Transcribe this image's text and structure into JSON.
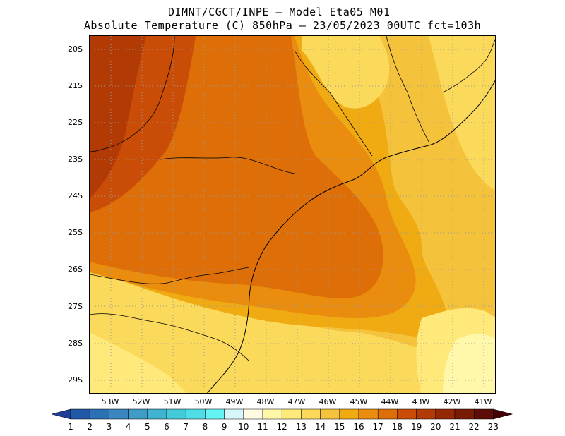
{
  "header": {
    "line1": "DIMNT/CGCT/INPE –  Model Eta05_M01_",
    "line2": "Absolute Temperature (C) 850hPa –  23/05/2023 00UTC fct=103h"
  },
  "map": {
    "lat_labels": [
      "20S",
      "21S",
      "22S",
      "23S",
      "24S",
      "25S",
      "26S",
      "27S",
      "28S",
      "29S"
    ],
    "lon_labels": [
      "53W",
      "52W",
      "51W",
      "50W",
      "49W",
      "48W",
      "47W",
      "46W",
      "45W",
      "44W",
      "43W",
      "42W",
      "41W"
    ],
    "grid": "dotted",
    "extent": {
      "lon": [
        -53.7,
        -40.6
      ],
      "lat": [
        -29.5,
        -19.8
      ]
    }
  },
  "colorbar": {
    "labels": [
      "1",
      "2",
      "3",
      "4",
      "5",
      "6",
      "7",
      "8",
      "9",
      "10",
      "11",
      "12",
      "13",
      "14",
      "15",
      "16",
      "17",
      "18",
      "19",
      "20",
      "21",
      "22",
      "23"
    ],
    "colors": [
      "#1e3f95",
      "#2158a8",
      "#2b71b4",
      "#3a86bf",
      "#3f9cc6",
      "#40b3d0",
      "#44cbd9",
      "#4fdde6",
      "#66f3f3",
      "#d6f6fa",
      "#fffbe3",
      "#fff7aa",
      "#ffe97a",
      "#fbd95a",
      "#f5c33b",
      "#f0aa12",
      "#ea8c0e",
      "#de6e07",
      "#c94d06",
      "#b23a05",
      "#962905",
      "#7a1b05",
      "#5e0d06",
      "#440206"
    ],
    "color_names_by_range": "below 1 to above 23"
  }
}
